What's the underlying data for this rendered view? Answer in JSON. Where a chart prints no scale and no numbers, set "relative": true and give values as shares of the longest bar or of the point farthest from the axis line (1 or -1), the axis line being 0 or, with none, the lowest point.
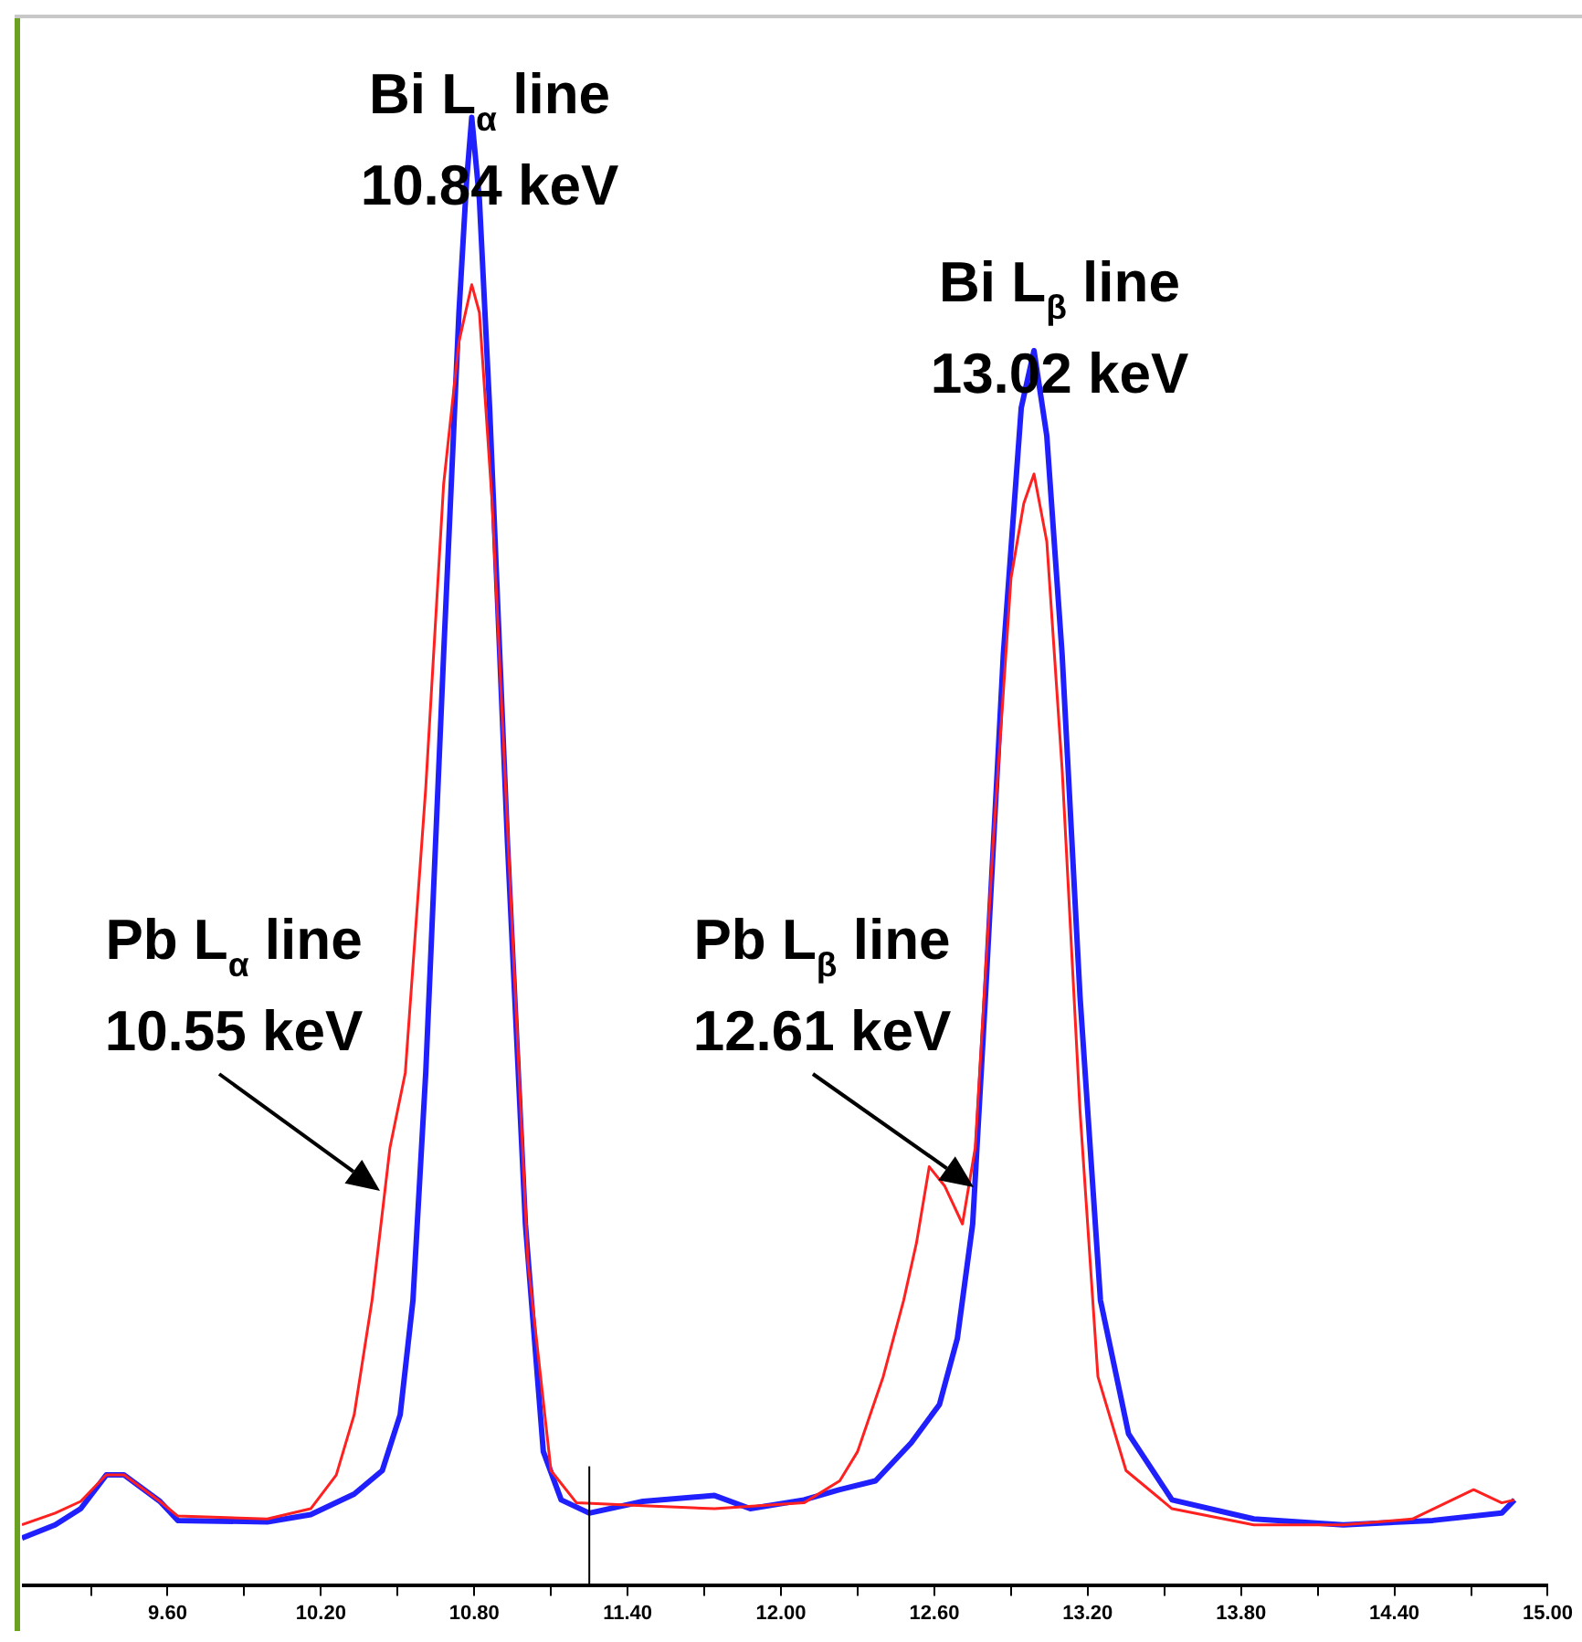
{
  "chart_data": {
    "type": "line",
    "relative": true,
    "grid": false,
    "legend": false,
    "marker": "none",
    "line_style": "solid",
    "xlim": [
      9.03,
      15.0
    ],
    "xticks": [
      {
        "value": 9.3,
        "label": null
      },
      {
        "value": 9.6,
        "label": "9.60"
      },
      {
        "value": 9.9,
        "label": null
      },
      {
        "value": 10.2,
        "label": "10.20"
      },
      {
        "value": 10.5,
        "label": null
      },
      {
        "value": 10.8,
        "label": "10.80"
      },
      {
        "value": 11.1,
        "label": null
      },
      {
        "value": 11.4,
        "label": "11.40"
      },
      {
        "value": 11.7,
        "label": null
      },
      {
        "value": 12.0,
        "label": "12.00"
      },
      {
        "value": 12.3,
        "label": null
      },
      {
        "value": 12.6,
        "label": "12.60"
      },
      {
        "value": 12.9,
        "label": null
      },
      {
        "value": 13.2,
        "label": "13.20"
      },
      {
        "value": 13.5,
        "label": null
      },
      {
        "value": 13.8,
        "label": "13.80"
      },
      {
        "value": 14.1,
        "label": null
      },
      {
        "value": 14.4,
        "label": "14.40"
      },
      {
        "value": 14.7,
        "label": null
      },
      {
        "value": 15.0,
        "label": "15.00"
      }
    ],
    "series": [
      {
        "color": "#ff2020",
        "x": [
          9.03,
          9.16,
          9.26,
          9.36,
          9.43,
          9.57,
          9.64,
          9.99,
          10.16,
          10.26,
          10.33,
          10.4,
          10.47,
          10.53,
          10.61,
          10.68,
          10.74,
          10.79,
          10.82,
          10.87,
          10.94,
          11.01,
          11.1,
          11.2,
          11.46,
          11.74,
          12.09,
          12.23,
          12.3,
          12.4,
          12.48,
          12.53,
          12.58,
          12.64,
          12.71,
          12.76,
          12.83,
          12.9,
          12.95,
          12.99,
          13.04,
          13.1,
          13.17,
          13.24,
          13.35,
          13.53,
          13.85,
          14.2,
          14.47,
          14.71,
          14.82,
          14.87
        ],
        "values": [
          0.041,
          0.049,
          0.057,
          0.075,
          0.075,
          0.057,
          0.047,
          0.045,
          0.052,
          0.075,
          0.116,
          0.194,
          0.298,
          0.349,
          0.543,
          0.75,
          0.847,
          0.886,
          0.867,
          0.737,
          0.479,
          0.22,
          0.078,
          0.056,
          0.054,
          0.052,
          0.056,
          0.071,
          0.091,
          0.142,
          0.194,
          0.233,
          0.285,
          0.272,
          0.246,
          0.298,
          0.505,
          0.686,
          0.737,
          0.757,
          0.711,
          0.556,
          0.323,
          0.142,
          0.078,
          0.052,
          0.041,
          0.041,
          0.045,
          0.065,
          0.056,
          0.058
        ]
      },
      {
        "color": "#2020ff",
        "x": [
          9.03,
          9.16,
          9.26,
          9.36,
          9.43,
          9.57,
          9.64,
          9.99,
          10.16,
          10.33,
          10.44,
          10.51,
          10.56,
          10.61,
          10.68,
          10.74,
          10.77,
          10.79,
          10.82,
          10.86,
          10.93,
          11.0,
          11.07,
          11.14,
          11.25,
          11.46,
          11.74,
          11.88,
          12.09,
          12.23,
          12.37,
          12.51,
          12.62,
          12.69,
          12.75,
          12.8,
          12.87,
          12.94,
          12.99,
          13.04,
          13.1,
          13.17,
          13.25,
          13.36,
          13.53,
          13.85,
          14.2,
          14.55,
          14.82,
          14.87
        ],
        "values": [
          0.032,
          0.041,
          0.052,
          0.075,
          0.075,
          0.057,
          0.044,
          0.043,
          0.048,
          0.062,
          0.078,
          0.116,
          0.194,
          0.349,
          0.634,
          0.867,
          0.957,
          1.0,
          0.944,
          0.802,
          0.505,
          0.246,
          0.091,
          0.058,
          0.049,
          0.057,
          0.061,
          0.052,
          0.058,
          0.065,
          0.071,
          0.097,
          0.123,
          0.168,
          0.246,
          0.401,
          0.634,
          0.802,
          0.841,
          0.783,
          0.634,
          0.401,
          0.194,
          0.103,
          0.058,
          0.045,
          0.041,
          0.044,
          0.049,
          0.058
        ]
      }
    ],
    "ref_lines": [
      {
        "axis": "x",
        "value": 11.25,
        "color": "#000000"
      }
    ],
    "annotations": [
      "Bi L$_{α}$ line\n10.84 keV",
      "Bi L$_{β}$ line\n13.02 keV",
      "Pb L$_{α}$ line\n10.55 keV",
      "Pb L$_{β}$ line\n12.61 keV"
    ]
  }
}
